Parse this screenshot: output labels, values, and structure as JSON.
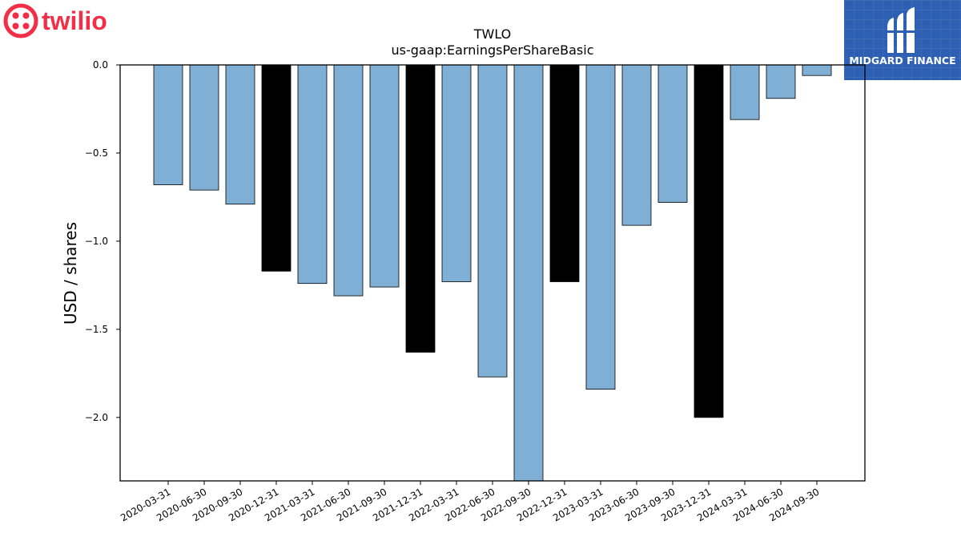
{
  "brand": {
    "name": "twilio",
    "color": "#f22f46"
  },
  "partner": {
    "name": "MIDGARD FINANCE",
    "color": "#2d5fb3"
  },
  "chart_data": {
    "type": "bar",
    "title": "TWLO",
    "subtitle": "us-gaap:EarningsPerShareBasic",
    "xlabel": "",
    "ylabel": "USD / shares",
    "ylim": [
      -2.36,
      0.0
    ],
    "yticks": [
      0.0,
      -0.5,
      -1.0,
      -1.5,
      -2.0
    ],
    "ytick_labels": [
      "0.0",
      "−0.5",
      "−1.0",
      "−1.5",
      "−2.0"
    ],
    "grid": false,
    "colors": {
      "quarter": "#7fafd4",
      "annual": "#000000",
      "edge": "#000000"
    },
    "categories": [
      "2020-03-31",
      "2020-06-30",
      "2020-09-30",
      "2020-12-31",
      "2021-03-31",
      "2021-06-30",
      "2021-09-30",
      "2021-12-31",
      "2022-03-31",
      "2022-06-30",
      "2022-09-30",
      "2022-12-31",
      "2023-03-31",
      "2023-06-30",
      "2023-09-30",
      "2023-12-31",
      "2024-03-31",
      "2024-06-30",
      "2024-09-30"
    ],
    "values": [
      -0.68,
      -0.71,
      -0.79,
      -1.17,
      -1.24,
      -1.31,
      -1.26,
      -1.63,
      -1.23,
      -1.77,
      -2.36,
      -1.23,
      -1.84,
      -0.91,
      -0.78,
      -2.0,
      -0.31,
      -0.19,
      -0.06
    ],
    "annual": [
      false,
      false,
      false,
      true,
      false,
      false,
      false,
      true,
      false,
      false,
      false,
      true,
      false,
      false,
      false,
      true,
      false,
      false,
      false
    ]
  }
}
